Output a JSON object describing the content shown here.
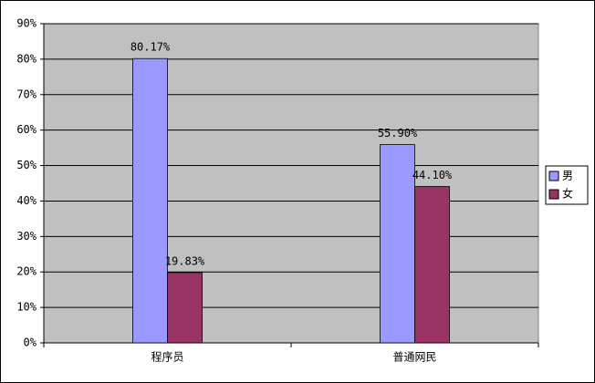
{
  "chart_data": {
    "type": "bar",
    "categories": [
      "程序员",
      "普通网民"
    ],
    "series": [
      {
        "name": "男",
        "color": "#9999ff",
        "values": [
          80.17,
          55.9
        ],
        "value_labels": [
          "80.17%",
          "55.90%"
        ]
      },
      {
        "name": "女",
        "color": "#993366",
        "values": [
          19.83,
          44.1
        ],
        "value_labels": [
          "19.83%",
          "44.10%"
        ]
      }
    ],
    "ylim": [
      0,
      90
    ],
    "yticks": [
      {
        "value": 0,
        "label": "0%"
      },
      {
        "value": 10,
        "label": "10%"
      },
      {
        "value": 20,
        "label": "20%"
      },
      {
        "value": 30,
        "label": "30%"
      },
      {
        "value": 40,
        "label": "40%"
      },
      {
        "value": 50,
        "label": "50%"
      },
      {
        "value": 60,
        "label": "60%"
      },
      {
        "value": 70,
        "label": "70%"
      },
      {
        "value": 80,
        "label": "80%"
      },
      {
        "value": 90,
        "label": "90%"
      }
    ],
    "grid": true,
    "legend": "right",
    "plot_background": "#c0c0c0"
  }
}
